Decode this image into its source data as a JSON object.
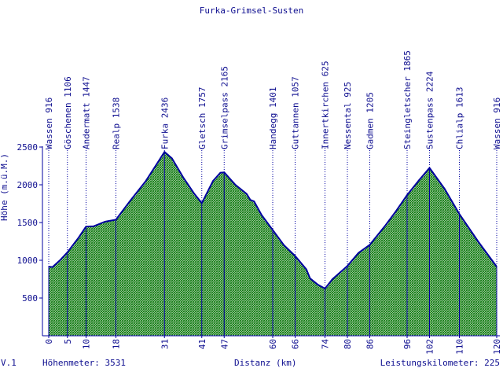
{
  "chart_data": {
    "type": "area",
    "title": "Furka-Grimsel-Susten",
    "xlabel": "Distanz (km)",
    "ylabel": "Höhe (m.ü.M.)",
    "xlim": [
      0,
      120
    ],
    "ylim": [
      0,
      2500
    ],
    "y_ticks": [
      500,
      1000,
      1500,
      2000,
      2500
    ],
    "grid": false,
    "fill_color": "#0f7a0f",
    "line_color": "#0000a0",
    "text_color": "#0d0d8f",
    "profile": [
      [
        0,
        916
      ],
      [
        1,
        910
      ],
      [
        3,
        1000
      ],
      [
        5,
        1106
      ],
      [
        8,
        1300
      ],
      [
        10,
        1447
      ],
      [
        12,
        1450
      ],
      [
        15,
        1510
      ],
      [
        18,
        1538
      ],
      [
        22,
        1800
      ],
      [
        26,
        2050
      ],
      [
        29,
        2280
      ],
      [
        31,
        2436
      ],
      [
        33,
        2350
      ],
      [
        36,
        2100
      ],
      [
        39,
        1880
      ],
      [
        41,
        1757
      ],
      [
        44,
        2050
      ],
      [
        46,
        2160
      ],
      [
        47,
        2165
      ],
      [
        50,
        2000
      ],
      [
        53,
        1880
      ],
      [
        54,
        1800
      ],
      [
        55,
        1780
      ],
      [
        57,
        1600
      ],
      [
        60,
        1401
      ],
      [
        63,
        1200
      ],
      [
        66,
        1057
      ],
      [
        69,
        880
      ],
      [
        70,
        760
      ],
      [
        72,
        680
      ],
      [
        74,
        625
      ],
      [
        76,
        750
      ],
      [
        80,
        925
      ],
      [
        83,
        1100
      ],
      [
        86,
        1205
      ],
      [
        90,
        1450
      ],
      [
        93,
        1650
      ],
      [
        96,
        1865
      ],
      [
        99,
        2050
      ],
      [
        102,
        2224
      ],
      [
        106,
        1950
      ],
      [
        110,
        1613
      ],
      [
        115,
        1250
      ],
      [
        120,
        916
      ]
    ],
    "waypoints": [
      {
        "km": 0,
        "label": "Wassen 916"
      },
      {
        "km": 5,
        "label": "Göschenen 1106"
      },
      {
        "km": 10,
        "label": "Andermatt 1447"
      },
      {
        "km": 18,
        "label": "Realp 1538"
      },
      {
        "km": 31,
        "label": "Furka 2436"
      },
      {
        "km": 41,
        "label": "Gletsch 1757"
      },
      {
        "km": 47,
        "label": "Grimselpass 2165"
      },
      {
        "km": 60,
        "label": "Handegg 1401"
      },
      {
        "km": 66,
        "label": "Guttannen 1057"
      },
      {
        "km": 74,
        "label": "Innertkirchen 625"
      },
      {
        "km": 80,
        "label": "Nessental 925"
      },
      {
        "km": 86,
        "label": "Gadmen 1205"
      },
      {
        "km": 96,
        "label": "Steingletscher 1865"
      },
      {
        "km": 102,
        "label": "Sustenpass 2224"
      },
      {
        "km": 110,
        "label": "Chlialp 1613"
      },
      {
        "km": 120,
        "label": "Wassen 916"
      }
    ],
    "footer": {
      "version": "V.1",
      "hoehenmeter": "Höhenmeter: 3531",
      "distanz": "Distanz (km)",
      "leistungskilometer": "Leistungskilometer: 225"
    }
  }
}
